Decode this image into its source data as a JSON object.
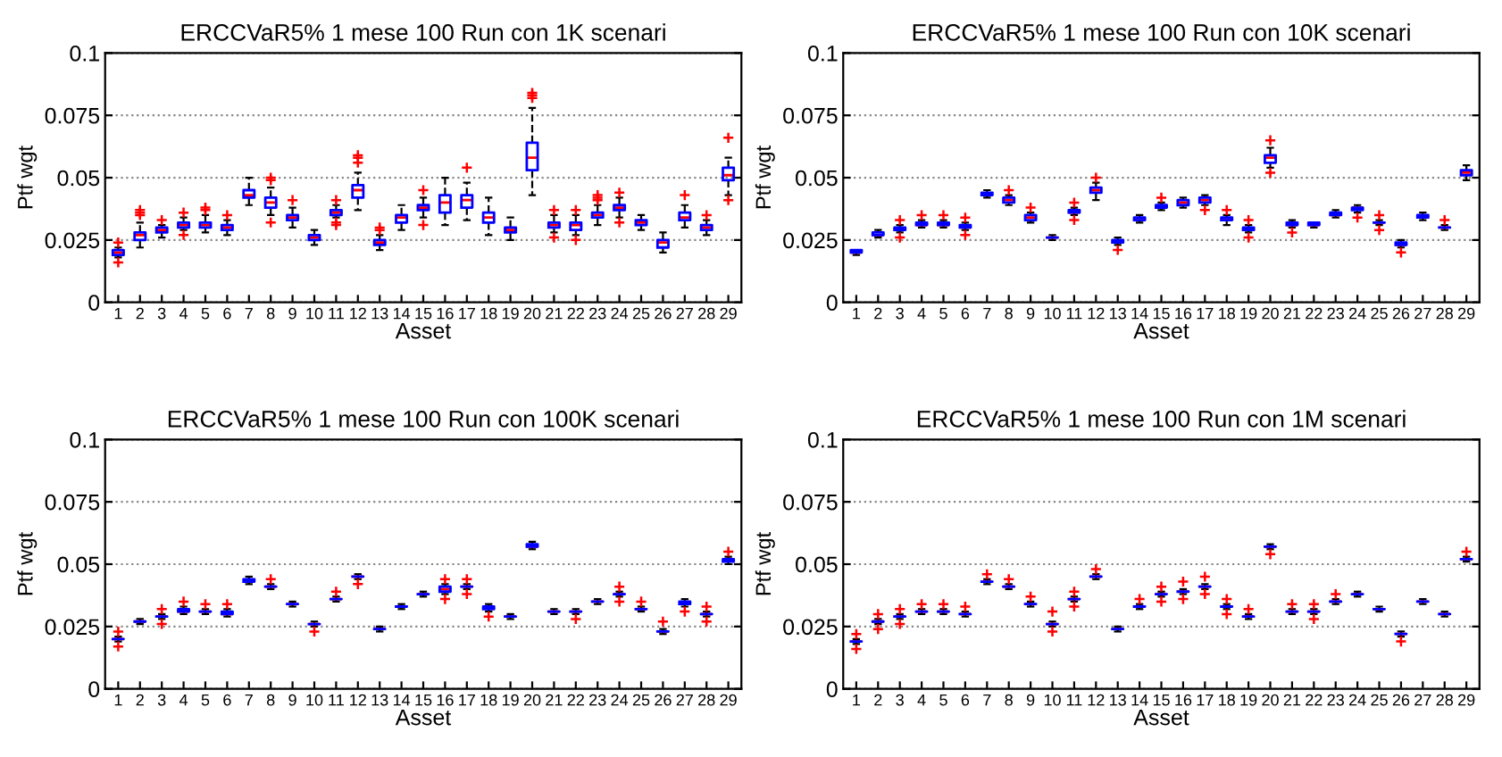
{
  "chart_data": [
    {
      "type": "box",
      "title": "ERCCVaR5% 1 mese 100 Run con 1K scenari",
      "xlabel": "Asset",
      "ylabel": "Ptf wgt",
      "categories": [
        "1",
        "2",
        "3",
        "4",
        "5",
        "6",
        "7",
        "8",
        "9",
        "10",
        "11",
        "12",
        "13",
        "14",
        "15",
        "16",
        "17",
        "18",
        "19",
        "20",
        "21",
        "22",
        "23",
        "24",
        "25",
        "26",
        "27",
        "28",
        "29"
      ],
      "ylim": [
        0,
        0.1
      ],
      "yticks": [
        0,
        0.025,
        0.05,
        0.075,
        0.1
      ],
      "grid": "y",
      "series": [
        {
          "boxes": [
            {
              "low": 0.018,
              "q1": 0.019,
              "median": 0.02,
              "q3": 0.021,
              "high": 0.022,
              "outliers": [
                0.016,
                0.024
              ]
            },
            {
              "low": 0.022,
              "q1": 0.025,
              "median": 0.027,
              "q3": 0.028,
              "high": 0.032,
              "outliers": [
                0.035,
                0.036,
                0.037
              ]
            },
            {
              "low": 0.026,
              "q1": 0.028,
              "median": 0.029,
              "q3": 0.03,
              "high": 0.031,
              "outliers": [
                0.033
              ]
            },
            {
              "low": 0.029,
              "q1": 0.03,
              "median": 0.031,
              "q3": 0.032,
              "high": 0.034,
              "outliers": [
                0.027,
                0.036
              ]
            },
            {
              "low": 0.028,
              "q1": 0.03,
              "median": 0.031,
              "q3": 0.032,
              "high": 0.035,
              "outliers": [
                0.037,
                0.038
              ]
            },
            {
              "low": 0.027,
              "q1": 0.029,
              "median": 0.03,
              "q3": 0.031,
              "high": 0.033,
              "outliers": [
                0.035
              ]
            },
            {
              "low": 0.039,
              "q1": 0.042,
              "median": 0.043,
              "q3": 0.045,
              "high": 0.05
            },
            {
              "low": 0.035,
              "q1": 0.038,
              "median": 0.04,
              "q3": 0.042,
              "high": 0.046,
              "outliers": [
                0.032,
                0.049,
                0.05
              ]
            },
            {
              "low": 0.03,
              "q1": 0.033,
              "median": 0.034,
              "q3": 0.035,
              "high": 0.038,
              "outliers": [
                0.041
              ]
            },
            {
              "low": 0.023,
              "q1": 0.025,
              "median": 0.026,
              "q3": 0.027,
              "high": 0.029
            },
            {
              "low": 0.034,
              "q1": 0.035,
              "median": 0.036,
              "q3": 0.037,
              "high": 0.039,
              "outliers": [
                0.031,
                0.032,
                0.041
              ]
            },
            {
              "low": 0.037,
              "q1": 0.042,
              "median": 0.045,
              "q3": 0.047,
              "high": 0.052,
              "outliers": [
                0.056,
                0.058,
                0.059
              ]
            },
            {
              "low": 0.021,
              "q1": 0.023,
              "median": 0.024,
              "q3": 0.025,
              "high": 0.027,
              "outliers": [
                0.029,
                0.03
              ]
            },
            {
              "low": 0.029,
              "q1": 0.032,
              "median": 0.034,
              "q3": 0.035,
              "high": 0.039
            },
            {
              "low": 0.034,
              "q1": 0.037,
              "median": 0.038,
              "q3": 0.039,
              "high": 0.042,
              "outliers": [
                0.031,
                0.045
              ]
            },
            {
              "low": 0.031,
              "q1": 0.036,
              "median": 0.04,
              "q3": 0.043,
              "high": 0.05
            },
            {
              "low": 0.033,
              "q1": 0.038,
              "median": 0.041,
              "q3": 0.043,
              "high": 0.048,
              "outliers": [
                0.054
              ]
            },
            {
              "low": 0.027,
              "q1": 0.032,
              "median": 0.034,
              "q3": 0.036,
              "high": 0.042
            },
            {
              "low": 0.025,
              "q1": 0.028,
              "median": 0.029,
              "q3": 0.03,
              "high": 0.034
            },
            {
              "low": 0.043,
              "q1": 0.053,
              "median": 0.058,
              "q3": 0.064,
              "high": 0.078,
              "outliers": [
                0.082,
                0.083,
                0.084
              ]
            },
            {
              "low": 0.028,
              "q1": 0.03,
              "median": 0.031,
              "q3": 0.032,
              "high": 0.035,
              "outliers": [
                0.026,
                0.037
              ]
            },
            {
              "low": 0.027,
              "q1": 0.029,
              "median": 0.031,
              "q3": 0.032,
              "high": 0.035,
              "outliers": [
                0.025,
                0.037
              ]
            },
            {
              "low": 0.031,
              "q1": 0.034,
              "median": 0.035,
              "q3": 0.036,
              "high": 0.039,
              "outliers": [
                0.041,
                0.042,
                0.043
              ]
            },
            {
              "low": 0.034,
              "q1": 0.037,
              "median": 0.038,
              "q3": 0.039,
              "high": 0.042,
              "outliers": [
                0.032,
                0.044
              ]
            },
            {
              "low": 0.029,
              "q1": 0.031,
              "median": 0.032,
              "q3": 0.033,
              "high": 0.035
            },
            {
              "low": 0.02,
              "q1": 0.022,
              "median": 0.024,
              "q3": 0.025,
              "high": 0.028
            },
            {
              "low": 0.03,
              "q1": 0.033,
              "median": 0.034,
              "q3": 0.036,
              "high": 0.039,
              "outliers": [
                0.043
              ]
            },
            {
              "low": 0.027,
              "q1": 0.029,
              "median": 0.03,
              "q3": 0.031,
              "high": 0.033,
              "outliers": [
                0.035
              ]
            },
            {
              "low": 0.043,
              "q1": 0.049,
              "median": 0.051,
              "q3": 0.054,
              "high": 0.058,
              "outliers": [
                0.041,
                0.066
              ]
            }
          ]
        }
      ]
    },
    {
      "type": "box",
      "title": "ERCCVaR5% 1 mese 100 Run con 10K scenari",
      "xlabel": "Asset",
      "ylabel": "Ptf wgt",
      "categories": [
        "1",
        "2",
        "3",
        "4",
        "5",
        "6",
        "7",
        "8",
        "9",
        "10",
        "11",
        "12",
        "13",
        "14",
        "15",
        "16",
        "17",
        "18",
        "19",
        "20",
        "21",
        "22",
        "23",
        "24",
        "25",
        "26",
        "27",
        "28",
        "29"
      ],
      "ylim": [
        0,
        0.1
      ],
      "yticks": [
        0,
        0.025,
        0.05,
        0.075,
        0.1
      ],
      "grid": "y",
      "series": [
        {
          "boxes": [
            {
              "low": 0.019,
              "q1": 0.02,
              "median": 0.02,
              "q3": 0.021,
              "high": 0.021
            },
            {
              "low": 0.026,
              "q1": 0.027,
              "median": 0.027,
              "q3": 0.028,
              "high": 0.029
            },
            {
              "low": 0.028,
              "q1": 0.029,
              "median": 0.029,
              "q3": 0.03,
              "high": 0.031,
              "outliers": [
                0.026,
                0.033
              ]
            },
            {
              "low": 0.03,
              "q1": 0.031,
              "median": 0.031,
              "q3": 0.032,
              "high": 0.033,
              "outliers": [
                0.035
              ]
            },
            {
              "low": 0.03,
              "q1": 0.031,
              "median": 0.031,
              "q3": 0.032,
              "high": 0.033,
              "outliers": [
                0.035
              ]
            },
            {
              "low": 0.029,
              "q1": 0.03,
              "median": 0.03,
              "q3": 0.031,
              "high": 0.032,
              "outliers": [
                0.027,
                0.034
              ]
            },
            {
              "low": 0.042,
              "q1": 0.043,
              "median": 0.043,
              "q3": 0.044,
              "high": 0.045
            },
            {
              "low": 0.039,
              "q1": 0.04,
              "median": 0.041,
              "q3": 0.042,
              "high": 0.043,
              "outliers": [
                0.045
              ]
            },
            {
              "low": 0.032,
              "q1": 0.033,
              "median": 0.034,
              "q3": 0.035,
              "high": 0.036,
              "outliers": [
                0.038
              ]
            },
            {
              "low": 0.025,
              "q1": 0.026,
              "median": 0.026,
              "q3": 0.026,
              "high": 0.027
            },
            {
              "low": 0.035,
              "q1": 0.036,
              "median": 0.036,
              "q3": 0.037,
              "high": 0.038,
              "outliers": [
                0.033,
                0.04
              ]
            },
            {
              "low": 0.041,
              "q1": 0.044,
              "median": 0.045,
              "q3": 0.046,
              "high": 0.048,
              "outliers": [
                0.05
              ]
            },
            {
              "low": 0.023,
              "q1": 0.024,
              "median": 0.024,
              "q3": 0.025,
              "high": 0.026,
              "outliers": [
                0.021
              ]
            },
            {
              "low": 0.032,
              "q1": 0.033,
              "median": 0.033,
              "q3": 0.034,
              "high": 0.035
            },
            {
              "low": 0.037,
              "q1": 0.038,
              "median": 0.038,
              "q3": 0.039,
              "high": 0.04,
              "outliers": [
                0.042
              ]
            },
            {
              "low": 0.038,
              "q1": 0.039,
              "median": 0.04,
              "q3": 0.041,
              "high": 0.042
            },
            {
              "low": 0.039,
              "q1": 0.04,
              "median": 0.041,
              "q3": 0.042,
              "high": 0.043,
              "outliers": [
                0.037
              ]
            },
            {
              "low": 0.031,
              "q1": 0.033,
              "median": 0.033,
              "q3": 0.034,
              "high": 0.035,
              "outliers": [
                0.037
              ]
            },
            {
              "low": 0.028,
              "q1": 0.029,
              "median": 0.029,
              "q3": 0.03,
              "high": 0.031,
              "outliers": [
                0.026,
                0.033
              ]
            },
            {
              "low": 0.054,
              "q1": 0.056,
              "median": 0.058,
              "q3": 0.059,
              "high": 0.062,
              "outliers": [
                0.052,
                0.065
              ]
            },
            {
              "low": 0.03,
              "q1": 0.031,
              "median": 0.031,
              "q3": 0.032,
              "high": 0.033,
              "outliers": [
                0.028
              ]
            },
            {
              "low": 0.03,
              "q1": 0.031,
              "median": 0.031,
              "q3": 0.032,
              "high": 0.032
            },
            {
              "low": 0.034,
              "q1": 0.035,
              "median": 0.035,
              "q3": 0.036,
              "high": 0.037
            },
            {
              "low": 0.036,
              "q1": 0.037,
              "median": 0.038,
              "q3": 0.038,
              "high": 0.039,
              "outliers": [
                0.034
              ]
            },
            {
              "low": 0.031,
              "q1": 0.032,
              "median": 0.032,
              "q3": 0.032,
              "high": 0.033,
              "outliers": [
                0.029,
                0.035
              ]
            },
            {
              "low": 0.022,
              "q1": 0.023,
              "median": 0.023,
              "q3": 0.024,
              "high": 0.025,
              "outliers": [
                0.02
              ]
            },
            {
              "low": 0.033,
              "q1": 0.034,
              "median": 0.034,
              "q3": 0.035,
              "high": 0.036
            },
            {
              "low": 0.029,
              "q1": 0.03,
              "median": 0.03,
              "q3": 0.03,
              "high": 0.031,
              "outliers": [
                0.033
              ]
            },
            {
              "low": 0.049,
              "q1": 0.051,
              "median": 0.052,
              "q3": 0.053,
              "high": 0.055
            }
          ]
        }
      ]
    },
    {
      "type": "box",
      "title": "ERCCVaR5% 1 mese 100 Run con 100K scenari",
      "xlabel": "Asset",
      "ylabel": "Ptf wgt",
      "categories": [
        "1",
        "2",
        "3",
        "4",
        "5",
        "6",
        "7",
        "8",
        "9",
        "10",
        "11",
        "12",
        "13",
        "14",
        "15",
        "16",
        "17",
        "18",
        "19",
        "20",
        "21",
        "22",
        "23",
        "24",
        "25",
        "26",
        "27",
        "28",
        "29"
      ],
      "ylim": [
        0,
        0.1
      ],
      "yticks": [
        0,
        0.025,
        0.05,
        0.075,
        0.1
      ],
      "grid": "y",
      "series": [
        {
          "boxes": [
            {
              "low": 0.019,
              "q1": 0.02,
              "median": 0.02,
              "q3": 0.02,
              "high": 0.021,
              "outliers": [
                0.017,
                0.023
              ]
            },
            {
              "low": 0.026,
              "q1": 0.027,
              "median": 0.027,
              "q3": 0.027,
              "high": 0.028
            },
            {
              "low": 0.028,
              "q1": 0.029,
              "median": 0.029,
              "q3": 0.029,
              "high": 0.03,
              "outliers": [
                0.026,
                0.032
              ]
            },
            {
              "low": 0.03,
              "q1": 0.031,
              "median": 0.031,
              "q3": 0.032,
              "high": 0.033,
              "outliers": [
                0.035
              ]
            },
            {
              "low": 0.03,
              "q1": 0.031,
              "median": 0.031,
              "q3": 0.031,
              "high": 0.032,
              "outliers": [
                0.034
              ]
            },
            {
              "low": 0.029,
              "q1": 0.03,
              "median": 0.03,
              "q3": 0.031,
              "high": 0.032,
              "outliers": [
                0.034
              ]
            },
            {
              "low": 0.042,
              "q1": 0.043,
              "median": 0.043,
              "q3": 0.044,
              "high": 0.045
            },
            {
              "low": 0.04,
              "q1": 0.041,
              "median": 0.041,
              "q3": 0.041,
              "high": 0.042,
              "outliers": [
                0.044
              ]
            },
            {
              "low": 0.033,
              "q1": 0.034,
              "median": 0.034,
              "q3": 0.034,
              "high": 0.035
            },
            {
              "low": 0.025,
              "q1": 0.026,
              "median": 0.026,
              "q3": 0.026,
              "high": 0.027,
              "outliers": [
                0.023
              ]
            },
            {
              "low": 0.035,
              "q1": 0.036,
              "median": 0.036,
              "q3": 0.036,
              "high": 0.037,
              "outliers": [
                0.039
              ]
            },
            {
              "low": 0.044,
              "q1": 0.045,
              "median": 0.045,
              "q3": 0.045,
              "high": 0.046,
              "outliers": [
                0.042
              ]
            },
            {
              "low": 0.023,
              "q1": 0.024,
              "median": 0.024,
              "q3": 0.024,
              "high": 0.025
            },
            {
              "low": 0.032,
              "q1": 0.033,
              "median": 0.033,
              "q3": 0.033,
              "high": 0.034
            },
            {
              "low": 0.037,
              "q1": 0.038,
              "median": 0.038,
              "q3": 0.038,
              "high": 0.039
            },
            {
              "low": 0.038,
              "q1": 0.039,
              "median": 0.04,
              "q3": 0.041,
              "high": 0.042,
              "outliers": [
                0.036,
                0.044
              ]
            },
            {
              "low": 0.04,
              "q1": 0.041,
              "median": 0.041,
              "q3": 0.041,
              "high": 0.042,
              "outliers": [
                0.038,
                0.044
              ]
            },
            {
              "low": 0.031,
              "q1": 0.032,
              "median": 0.033,
              "q3": 0.033,
              "high": 0.034,
              "outliers": [
                0.029
              ]
            },
            {
              "low": 0.028,
              "q1": 0.029,
              "median": 0.029,
              "q3": 0.029,
              "high": 0.03
            },
            {
              "low": 0.056,
              "q1": 0.057,
              "median": 0.057,
              "q3": 0.058,
              "high": 0.059
            },
            {
              "low": 0.03,
              "q1": 0.031,
              "median": 0.031,
              "q3": 0.031,
              "high": 0.032
            },
            {
              "low": 0.03,
              "q1": 0.031,
              "median": 0.031,
              "q3": 0.031,
              "high": 0.032,
              "outliers": [
                0.028
              ]
            },
            {
              "low": 0.034,
              "q1": 0.035,
              "median": 0.035,
              "q3": 0.035,
              "high": 0.036
            },
            {
              "low": 0.037,
              "q1": 0.038,
              "median": 0.038,
              "q3": 0.038,
              "high": 0.039,
              "outliers": [
                0.035,
                0.041
              ]
            },
            {
              "low": 0.031,
              "q1": 0.032,
              "median": 0.032,
              "q3": 0.032,
              "high": 0.033,
              "outliers": [
                0.035
              ]
            },
            {
              "low": 0.022,
              "q1": 0.023,
              "median": 0.023,
              "q3": 0.023,
              "high": 0.024,
              "outliers": [
                0.027
              ]
            },
            {
              "low": 0.033,
              "q1": 0.034,
              "median": 0.034,
              "q3": 0.035,
              "high": 0.036,
              "outliers": [
                0.031
              ]
            },
            {
              "low": 0.029,
              "q1": 0.03,
              "median": 0.03,
              "q3": 0.03,
              "high": 0.031,
              "outliers": [
                0.027,
                0.033
              ]
            },
            {
              "low": 0.05,
              "q1": 0.051,
              "median": 0.052,
              "q3": 0.052,
              "high": 0.053,
              "outliers": [
                0.055
              ]
            }
          ]
        }
      ]
    },
    {
      "type": "box",
      "title": "ERCCVaR5% 1 mese 100 Run con 1M scenari",
      "xlabel": "Asset",
      "ylabel": "Ptf wgt",
      "categories": [
        "1",
        "2",
        "3",
        "4",
        "5",
        "6",
        "7",
        "8",
        "9",
        "10",
        "11",
        "12",
        "13",
        "14",
        "15",
        "16",
        "17",
        "18",
        "19",
        "20",
        "21",
        "22",
        "23",
        "24",
        "25",
        "26",
        "27",
        "28",
        "29"
      ],
      "ylim": [
        0,
        0.1
      ],
      "yticks": [
        0,
        0.025,
        0.05,
        0.075,
        0.1
      ],
      "grid": "y",
      "series": [
        {
          "boxes": [
            {
              "low": 0.018,
              "q1": 0.019,
              "median": 0.019,
              "q3": 0.019,
              "high": 0.02,
              "outliers": [
                0.016,
                0.022
              ]
            },
            {
              "low": 0.026,
              "q1": 0.027,
              "median": 0.027,
              "q3": 0.027,
              "high": 0.028,
              "outliers": [
                0.024,
                0.03
              ]
            },
            {
              "low": 0.028,
              "q1": 0.029,
              "median": 0.029,
              "q3": 0.029,
              "high": 0.03,
              "outliers": [
                0.026,
                0.032
              ]
            },
            {
              "low": 0.03,
              "q1": 0.031,
              "median": 0.031,
              "q3": 0.031,
              "high": 0.032,
              "outliers": [
                0.034
              ]
            },
            {
              "low": 0.03,
              "q1": 0.031,
              "median": 0.031,
              "q3": 0.031,
              "high": 0.032,
              "outliers": [
                0.034
              ]
            },
            {
              "low": 0.029,
              "q1": 0.03,
              "median": 0.03,
              "q3": 0.03,
              "high": 0.031,
              "outliers": [
                0.033
              ]
            },
            {
              "low": 0.042,
              "q1": 0.043,
              "median": 0.043,
              "q3": 0.043,
              "high": 0.044,
              "outliers": [
                0.046
              ]
            },
            {
              "low": 0.04,
              "q1": 0.041,
              "median": 0.041,
              "q3": 0.041,
              "high": 0.042,
              "outliers": [
                0.044
              ]
            },
            {
              "low": 0.033,
              "q1": 0.034,
              "median": 0.034,
              "q3": 0.034,
              "high": 0.035,
              "outliers": [
                0.037
              ]
            },
            {
              "low": 0.025,
              "q1": 0.026,
              "median": 0.026,
              "q3": 0.026,
              "high": 0.027,
              "outliers": [
                0.023,
                0.031
              ]
            },
            {
              "low": 0.035,
              "q1": 0.036,
              "median": 0.036,
              "q3": 0.036,
              "high": 0.037,
              "outliers": [
                0.033,
                0.039
              ]
            },
            {
              "low": 0.044,
              "q1": 0.045,
              "median": 0.045,
              "q3": 0.045,
              "high": 0.046,
              "outliers": [
                0.048
              ]
            },
            {
              "low": 0.023,
              "q1": 0.024,
              "median": 0.024,
              "q3": 0.024,
              "high": 0.025
            },
            {
              "low": 0.032,
              "q1": 0.033,
              "median": 0.033,
              "q3": 0.033,
              "high": 0.034,
              "outliers": [
                0.036
              ]
            },
            {
              "low": 0.037,
              "q1": 0.038,
              "median": 0.038,
              "q3": 0.038,
              "high": 0.039,
              "outliers": [
                0.035,
                0.041
              ]
            },
            {
              "low": 0.038,
              "q1": 0.039,
              "median": 0.039,
              "q3": 0.039,
              "high": 0.04,
              "outliers": [
                0.036,
                0.043
              ]
            },
            {
              "low": 0.04,
              "q1": 0.041,
              "median": 0.041,
              "q3": 0.041,
              "high": 0.042,
              "outliers": [
                0.038,
                0.045
              ]
            },
            {
              "low": 0.032,
              "q1": 0.033,
              "median": 0.033,
              "q3": 0.033,
              "high": 0.034,
              "outliers": [
                0.03,
                0.036
              ]
            },
            {
              "low": 0.028,
              "q1": 0.029,
              "median": 0.029,
              "q3": 0.029,
              "high": 0.03,
              "outliers": [
                0.032
              ]
            },
            {
              "low": 0.056,
              "q1": 0.057,
              "median": 0.057,
              "q3": 0.057,
              "high": 0.058,
              "outliers": [
                0.054
              ]
            },
            {
              "low": 0.03,
              "q1": 0.031,
              "median": 0.031,
              "q3": 0.031,
              "high": 0.032,
              "outliers": [
                0.034
              ]
            },
            {
              "low": 0.03,
              "q1": 0.031,
              "median": 0.031,
              "q3": 0.031,
              "high": 0.032,
              "outliers": [
                0.028,
                0.034
              ]
            },
            {
              "low": 0.034,
              "q1": 0.035,
              "median": 0.035,
              "q3": 0.035,
              "high": 0.036,
              "outliers": [
                0.038
              ]
            },
            {
              "low": 0.037,
              "q1": 0.038,
              "median": 0.038,
              "q3": 0.038,
              "high": 0.039
            },
            {
              "low": 0.031,
              "q1": 0.032,
              "median": 0.032,
              "q3": 0.032,
              "high": 0.033
            },
            {
              "low": 0.021,
              "q1": 0.022,
              "median": 0.022,
              "q3": 0.022,
              "high": 0.023,
              "outliers": [
                0.019
              ]
            },
            {
              "low": 0.034,
              "q1": 0.035,
              "median": 0.035,
              "q3": 0.035,
              "high": 0.036
            },
            {
              "low": 0.029,
              "q1": 0.03,
              "median": 0.03,
              "q3": 0.03,
              "high": 0.031
            },
            {
              "low": 0.051,
              "q1": 0.052,
              "median": 0.052,
              "q3": 0.052,
              "high": 0.053,
              "outliers": [
                0.055
              ]
            }
          ]
        }
      ]
    }
  ]
}
